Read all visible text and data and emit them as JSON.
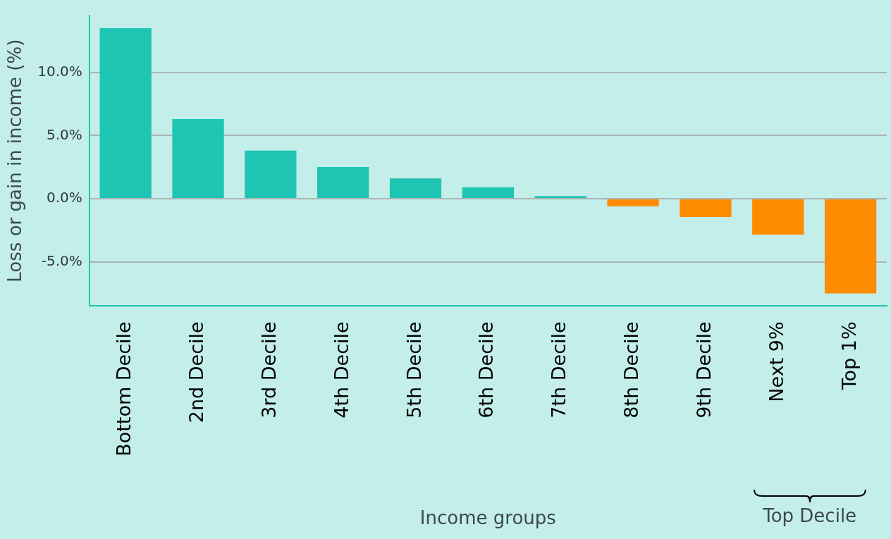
{
  "chart_data": {
    "type": "bar",
    "xlabel": "Income groups",
    "ylabel": "Loss or gain in income (%)",
    "categories": [
      "Bottom Decile",
      "2nd Decile",
      "3rd Decile",
      "4th Decile",
      "5th Decile",
      "6th Decile",
      "7th Decile",
      "8th Decile",
      "9th Decile",
      "Next 9%",
      "Top 1%"
    ],
    "values": [
      13.5,
      6.3,
      3.8,
      2.5,
      1.6,
      0.9,
      0.2,
      -0.6,
      -1.45,
      -2.85,
      -7.5
    ],
    "colors": [
      "#1fc5b3",
      "#1fc5b3",
      "#1fc5b3",
      "#1fc5b3",
      "#1fc5b3",
      "#1fc5b3",
      "#1fc5b3",
      "#ff8c00",
      "#ff8c00",
      "#ff8c00",
      "#ff8c00"
    ],
    "ylim": [
      -8.5,
      14.5
    ],
    "yticks": [
      {
        "value": -5,
        "label": "-5.0%"
      },
      {
        "value": 0,
        "label": "0.0%"
      },
      {
        "value": 5,
        "label": "5.0%"
      },
      {
        "value": 10,
        "label": "10.0%"
      }
    ],
    "grid": "y",
    "annotations": [
      "Top Decile"
    ]
  }
}
